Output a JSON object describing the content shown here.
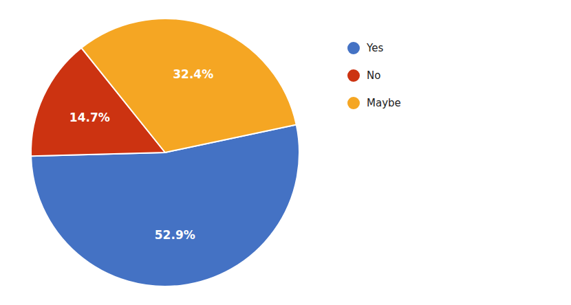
{
  "chart_data": {
    "type": "pie",
    "categories": [
      "Yes",
      "No",
      "Maybe"
    ],
    "values": [
      52.9,
      14.7,
      32.4
    ],
    "value_labels": [
      "52.9%",
      "14.7%",
      "32.4%"
    ],
    "colors": [
      "#4472C4",
      "#CC3311",
      "#F5A623"
    ],
    "data_labels": true,
    "legend": "right"
  }
}
